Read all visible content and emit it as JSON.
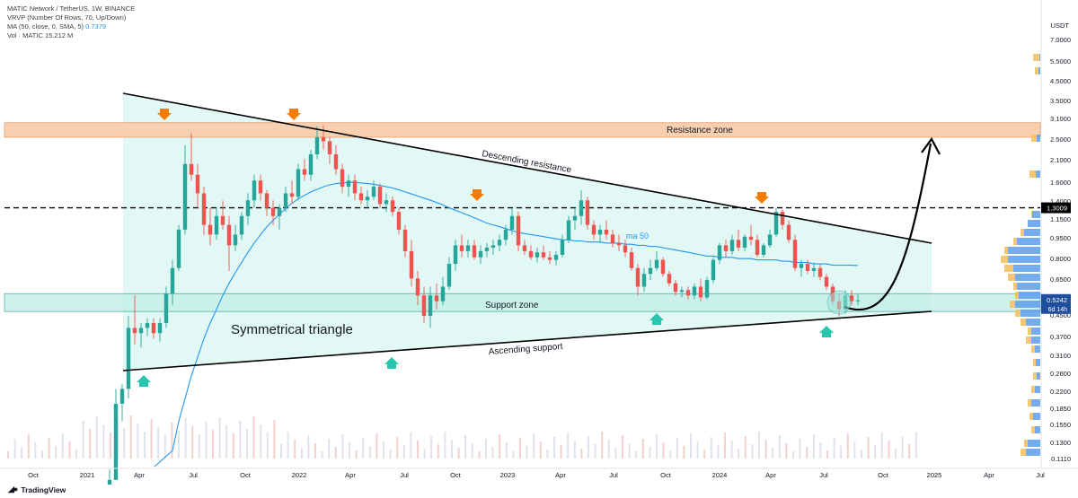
{
  "legend": {
    "symbol_line": "MATIC Network / TetherUS, 1W, BINANCE",
    "vrvp_line": "VRVP (Number Of Rows, 70, Up/Down)",
    "ma_line": "MA (50, close, 0, SMA, 5)",
    "ma_value": "0.7379",
    "vol_line": "Vol · MATIC",
    "vol_value": "15.212 M"
  },
  "currency": "USDT",
  "footer": {
    "brand": "TradingView"
  },
  "chart_data": {
    "type": "candlestick",
    "instrument": "MATIC Network / TetherUS",
    "interval": "1W",
    "exchange": "BINANCE",
    "y_scale": "log",
    "y_ticks": [
      "7.0000",
      "5.5000",
      "4.5000",
      "3.5000",
      "3.1000",
      "2.5000",
      "2.1000",
      "1.6000",
      "1.4000",
      "1.1500",
      "0.9500",
      "0.8000",
      "0.6500",
      "0.4500",
      "0.3700",
      "0.3100",
      "0.2600",
      "0.2200",
      "0.1850",
      "0.1550",
      "0.1300",
      "0.1110"
    ],
    "x_ticks": [
      "Oct",
      "2021",
      "Apr",
      "Jul",
      "Oct",
      "2022",
      "Apr",
      "Jul",
      "Oct",
      "2023",
      "Apr",
      "Jul",
      "Oct",
      "2024",
      "Apr",
      "Jul",
      "Oct",
      "2025",
      "Apr",
      "Jul"
    ],
    "price_badge": "1.3009",
    "last_price": "0.5242",
    "countdown": "6d 14h",
    "annotations": {
      "resistance_zone": "Resistance zone",
      "descending_resistance": "Descending resistance",
      "support_zone": "Support zone",
      "ascending_support": "Ascending support",
      "pattern": "Symmetrical triangle",
      "ma_label": "ma 50"
    },
    "levels": {
      "resistance_zone": [
        2.6,
        3.0
      ],
      "dashed_line": 1.3009,
      "support_zone": [
        0.47,
        0.56
      ]
    },
    "colors": {
      "up": "#26a69a",
      "down": "#ef5350",
      "ma": "#2196f3",
      "zone_fill": "#dff7f3",
      "resistance_fill": "#f8d0b0",
      "arrow_top": "#f57c00",
      "arrow_bottom": "#26c6b0"
    },
    "candles": [
      [
        0.08,
        0.1,
        0.07,
        0.09
      ],
      [
        0.09,
        0.22,
        0.09,
        0.19
      ],
      [
        0.19,
        0.23,
        0.16,
        0.22
      ],
      [
        0.22,
        0.45,
        0.2,
        0.4
      ],
      [
        0.4,
        0.55,
        0.34,
        0.38
      ],
      [
        0.38,
        0.42,
        0.33,
        0.4
      ],
      [
        0.4,
        0.44,
        0.37,
        0.42
      ],
      [
        0.42,
        0.44,
        0.36,
        0.38
      ],
      [
        0.38,
        0.44,
        0.35,
        0.42
      ],
      [
        0.42,
        0.6,
        0.4,
        0.56
      ],
      [
        0.56,
        0.78,
        0.5,
        0.72
      ],
      [
        0.72,
        1.1,
        0.7,
        1.05
      ],
      [
        1.05,
        2.4,
        1.0,
        2.0
      ],
      [
        2.0,
        2.7,
        1.7,
        1.8
      ],
      [
        1.8,
        2.0,
        1.3,
        1.5
      ],
      [
        1.5,
        1.6,
        1.0,
        1.1
      ],
      [
        1.1,
        1.3,
        0.9,
        1.0
      ],
      [
        1.0,
        1.3,
        0.95,
        1.2
      ],
      [
        1.2,
        1.4,
        1.05,
        1.1
      ],
      [
        1.1,
        1.2,
        0.7,
        0.9
      ],
      [
        0.9,
        1.1,
        0.85,
        1.0
      ],
      [
        1.0,
        1.25,
        0.95,
        1.2
      ],
      [
        1.2,
        1.5,
        1.1,
        1.4
      ],
      [
        1.4,
        1.8,
        1.3,
        1.7
      ],
      [
        1.7,
        1.8,
        1.4,
        1.5
      ],
      [
        1.5,
        1.55,
        1.2,
        1.3
      ],
      [
        1.3,
        1.4,
        1.1,
        1.2
      ],
      [
        1.2,
        1.35,
        1.05,
        1.3
      ],
      [
        1.3,
        1.6,
        1.25,
        1.5
      ],
      [
        1.5,
        1.7,
        1.35,
        1.45
      ],
      [
        1.45,
        2.0,
        1.4,
        1.9
      ],
      [
        1.9,
        2.1,
        1.7,
        1.8
      ],
      [
        1.8,
        2.3,
        1.7,
        2.2
      ],
      [
        2.2,
        2.9,
        2.1,
        2.6
      ],
      [
        2.6,
        2.92,
        2.3,
        2.5
      ],
      [
        2.5,
        2.6,
        2.0,
        2.2
      ],
      [
        2.2,
        2.4,
        1.8,
        1.9
      ],
      [
        1.9,
        2.0,
        1.5,
        1.6
      ],
      [
        1.6,
        1.8,
        1.45,
        1.7
      ],
      [
        1.7,
        1.8,
        1.4,
        1.5
      ],
      [
        1.5,
        1.6,
        1.35,
        1.4
      ],
      [
        1.4,
        1.55,
        1.3,
        1.45
      ],
      [
        1.45,
        1.7,
        1.4,
        1.6
      ],
      [
        1.6,
        1.65,
        1.3,
        1.35
      ],
      [
        1.35,
        1.5,
        1.25,
        1.4
      ],
      [
        1.4,
        1.45,
        1.2,
        1.25
      ],
      [
        1.25,
        1.3,
        1.0,
        1.05
      ],
      [
        1.05,
        1.1,
        0.8,
        0.85
      ],
      [
        0.85,
        0.95,
        0.6,
        0.65
      ],
      [
        0.65,
        0.7,
        0.5,
        0.55
      ],
      [
        0.55,
        0.6,
        0.42,
        0.45
      ],
      [
        0.45,
        0.6,
        0.4,
        0.55
      ],
      [
        0.55,
        0.62,
        0.48,
        0.52
      ],
      [
        0.52,
        0.66,
        0.5,
        0.6
      ],
      [
        0.6,
        0.8,
        0.58,
        0.75
      ],
      [
        0.75,
        0.95,
        0.7,
        0.9
      ],
      [
        0.9,
        1.0,
        0.8,
        0.85
      ],
      [
        0.85,
        0.95,
        0.8,
        0.9
      ],
      [
        0.9,
        0.95,
        0.78,
        0.8
      ],
      [
        0.8,
        0.9,
        0.75,
        0.85
      ],
      [
        0.85,
        0.92,
        0.8,
        0.88
      ],
      [
        0.88,
        0.95,
        0.82,
        0.9
      ],
      [
        0.9,
        1.0,
        0.85,
        0.95
      ],
      [
        0.95,
        1.1,
        0.9,
        1.05
      ],
      [
        1.05,
        1.3,
        1.0,
        1.2
      ],
      [
        1.2,
        1.25,
        0.85,
        0.9
      ],
      [
        0.9,
        0.95,
        0.82,
        0.85
      ],
      [
        0.85,
        0.9,
        0.78,
        0.8
      ],
      [
        0.8,
        0.88,
        0.76,
        0.84
      ],
      [
        0.84,
        0.9,
        0.78,
        0.8
      ],
      [
        0.8,
        0.85,
        0.75,
        0.78
      ],
      [
        0.78,
        0.85,
        0.74,
        0.82
      ],
      [
        0.82,
        1.0,
        0.8,
        0.95
      ],
      [
        0.95,
        1.2,
        0.92,
        1.15
      ],
      [
        1.15,
        1.3,
        1.05,
        1.2
      ],
      [
        1.2,
        1.55,
        1.1,
        1.4
      ],
      [
        1.4,
        1.45,
        1.05,
        1.1
      ],
      [
        1.1,
        1.15,
        0.95,
        1.0
      ],
      [
        1.0,
        1.1,
        0.92,
        1.05
      ],
      [
        1.05,
        1.15,
        0.95,
        1.0
      ],
      [
        1.0,
        1.05,
        0.88,
        0.92
      ],
      [
        0.92,
        1.0,
        0.85,
        0.9
      ],
      [
        0.9,
        0.95,
        0.8,
        0.84
      ],
      [
        0.84,
        0.88,
        0.7,
        0.72
      ],
      [
        0.72,
        0.75,
        0.55,
        0.6
      ],
      [
        0.6,
        0.72,
        0.57,
        0.68
      ],
      [
        0.68,
        0.78,
        0.64,
        0.72
      ],
      [
        0.72,
        0.85,
        0.7,
        0.78
      ],
      [
        0.78,
        0.8,
        0.66,
        0.68
      ],
      [
        0.68,
        0.7,
        0.6,
        0.62
      ],
      [
        0.62,
        0.64,
        0.55,
        0.57
      ],
      [
        0.57,
        0.6,
        0.54,
        0.58
      ],
      [
        0.58,
        0.6,
        0.53,
        0.55
      ],
      [
        0.55,
        0.62,
        0.53,
        0.6
      ],
      [
        0.6,
        0.65,
        0.52,
        0.54
      ],
      [
        0.54,
        0.66,
        0.53,
        0.64
      ],
      [
        0.64,
        0.8,
        0.62,
        0.78
      ],
      [
        0.78,
        0.92,
        0.75,
        0.9
      ],
      [
        0.9,
        0.95,
        0.8,
        0.85
      ],
      [
        0.85,
        1.0,
        0.82,
        0.95
      ],
      [
        0.95,
        1.05,
        0.85,
        0.88
      ],
      [
        0.88,
        1.0,
        0.85,
        0.98
      ],
      [
        0.98,
        1.1,
        0.9,
        0.95
      ],
      [
        0.95,
        1.0,
        0.8,
        0.82
      ],
      [
        0.82,
        0.92,
        0.8,
        0.9
      ],
      [
        0.9,
        1.05,
        0.88,
        1.0
      ],
      [
        1.0,
        1.3,
        0.98,
        1.25
      ],
      [
        1.25,
        1.28,
        1.05,
        1.1
      ],
      [
        1.1,
        1.15,
        0.92,
        0.95
      ],
      [
        0.95,
        1.0,
        0.7,
        0.72
      ],
      [
        0.72,
        0.78,
        0.66,
        0.75
      ],
      [
        0.75,
        0.78,
        0.68,
        0.7
      ],
      [
        0.7,
        0.76,
        0.66,
        0.72
      ],
      [
        0.72,
        0.75,
        0.64,
        0.66
      ],
      [
        0.66,
        0.68,
        0.58,
        0.6
      ],
      [
        0.6,
        0.62,
        0.5,
        0.52
      ],
      [
        0.52,
        0.56,
        0.45,
        0.48
      ],
      [
        0.48,
        0.58,
        0.46,
        0.55
      ],
      [
        0.55,
        0.58,
        0.5,
        0.52
      ],
      [
        0.52,
        0.56,
        0.5,
        0.5242
      ]
    ],
    "ma50": [
      null,
      null,
      null,
      null,
      null,
      null,
      null,
      null,
      null,
      null,
      0.12,
      0.16,
      0.2,
      0.25,
      0.3,
      0.36,
      0.42,
      0.48,
      0.55,
      0.62,
      0.69,
      0.76,
      0.84,
      0.92,
      1.0,
      1.08,
      1.15,
      1.22,
      1.29,
      1.36,
      1.42,
      1.47,
      1.52,
      1.56,
      1.6,
      1.63,
      1.65,
      1.66,
      1.67,
      1.67,
      1.66,
      1.65,
      1.64,
      1.62,
      1.6,
      1.58,
      1.55,
      1.52,
      1.49,
      1.46,
      1.43,
      1.4,
      1.37,
      1.34,
      1.3,
      1.27,
      1.24,
      1.21,
      1.18,
      1.15,
      1.12,
      1.1,
      1.08,
      1.06,
      1.04,
      1.02,
      1.01,
      1.0,
      0.99,
      0.98,
      0.97,
      0.96,
      0.95,
      0.95,
      0.94,
      0.94,
      0.93,
      0.93,
      0.93,
      0.92,
      0.92,
      0.92,
      0.91,
      0.91,
      0.9,
      0.9,
      0.89,
      0.89,
      0.88,
      0.87,
      0.86,
      0.85,
      0.84,
      0.83,
      0.82,
      0.81,
      0.81,
      0.8,
      0.8,
      0.8,
      0.79,
      0.79,
      0.79,
      0.78,
      0.78,
      0.78,
      0.78,
      0.77,
      0.77,
      0.76,
      0.76,
      0.76,
      0.75,
      0.75,
      0.75,
      0.74,
      0.74,
      0.74,
      0.74,
      0.7379
    ]
  }
}
